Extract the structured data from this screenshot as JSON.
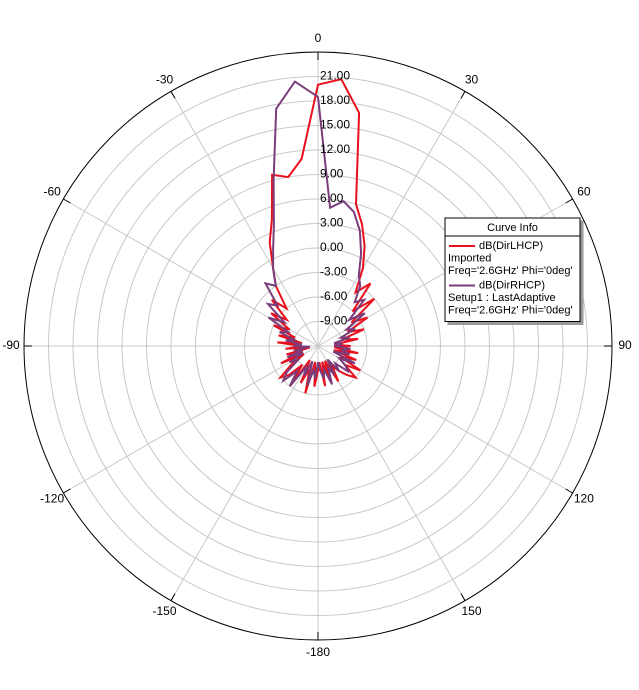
{
  "chart_data": {
    "type": "polar",
    "rlim": [
      -12,
      24
    ],
    "rticks": [
      {
        "value": -9,
        "label": "-9.00"
      },
      {
        "value": -6,
        "label": "-6.00"
      },
      {
        "value": -3,
        "label": "-3.00"
      },
      {
        "value": 0,
        "label": "0.00"
      },
      {
        "value": 3,
        "label": "3.00"
      },
      {
        "value": 6,
        "label": "6.00"
      },
      {
        "value": 9,
        "label": "9.00"
      },
      {
        "value": 12,
        "label": "12.00"
      },
      {
        "value": 15,
        "label": "15.00"
      },
      {
        "value": 18,
        "label": "18.00"
      },
      {
        "value": 21,
        "label": "21.00"
      }
    ],
    "thetaticks": [
      0,
      30,
      60,
      90,
      120,
      150,
      -180,
      -150,
      -120,
      -90,
      -60,
      -30
    ],
    "grid": true,
    "legend_title": "Curve Info",
    "x": [
      -180,
      -175,
      -170,
      -165,
      -160,
      -155,
      -150,
      -145,
      -140,
      -135,
      -130,
      -125,
      -120,
      -115,
      -110,
      -105,
      -100,
      -95,
      -90,
      -85,
      -80,
      -75,
      -70,
      -65,
      -60,
      -55,
      -50,
      -45,
      -40,
      -35,
      -30,
      -25,
      -20,
      -15,
      -10,
      -5,
      0,
      5,
      10,
      15,
      20,
      25,
      30,
      35,
      40,
      45,
      50,
      55,
      60,
      65,
      70,
      75,
      80,
      85,
      90,
      95,
      100,
      105,
      110,
      115,
      120,
      125,
      130,
      135,
      140,
      145,
      150,
      155,
      160,
      165,
      170,
      175
    ],
    "series": [
      {
        "name": "dB(DirLHCP)",
        "details": [
          "Imported",
          "Freq='2.6GHz' Phi='0deg'"
        ],
        "color": "#e8101c",
        "values": [
          -9,
          -7,
          -10,
          -6,
          -9,
          -7,
          -10,
          -6,
          -9,
          -7,
          -6,
          -8,
          -10,
          -7,
          -10,
          -8,
          -11,
          -8,
          -10,
          -7,
          -10,
          -7,
          -9,
          -6,
          -8,
          -5,
          -7,
          -4,
          -6,
          -3,
          -1,
          2,
          4.5,
          9.7,
          9,
          11,
          20,
          20.8,
          17,
          6,
          3.8,
          1.5,
          -1,
          -4,
          -2,
          -6,
          -3,
          -7,
          -5,
          -8,
          -6,
          -9,
          -7,
          -10,
          -8,
          -10,
          -7,
          -10,
          -7,
          -9,
          -6,
          -8,
          -6,
          -7,
          -8,
          -9,
          -7,
          -10,
          -8,
          -10,
          -7,
          -10
        ]
      },
      {
        "name": "dB(DirRHCP)",
        "details": [
          "Setup1 : LastAdaptive",
          "Freq='2.6GHz' Phi='0deg'"
        ],
        "color": "#7b3c7b",
        "values": [
          -10,
          -8,
          -9,
          -7,
          -10,
          -8,
          -9,
          -6,
          -8,
          -6,
          -7,
          -9,
          -8,
          -10,
          -8,
          -10,
          -9,
          -11,
          -9,
          -10,
          -8,
          -9,
          -7,
          -8,
          -5,
          -7,
          -4,
          -5,
          -2,
          -3,
          -1,
          1,
          3.8,
          9,
          17.5,
          20.5,
          18.5,
          5,
          6,
          5,
          3,
          0.5,
          -2,
          -3,
          -5,
          -4,
          -7,
          -5,
          -8,
          -7,
          -9,
          -8,
          -10,
          -9,
          -10,
          -8,
          -9,
          -8,
          -10,
          -7,
          -9,
          -8,
          -7,
          -9,
          -8,
          -10,
          -8,
          -9,
          -7,
          -9,
          -8,
          -9
        ]
      }
    ]
  }
}
